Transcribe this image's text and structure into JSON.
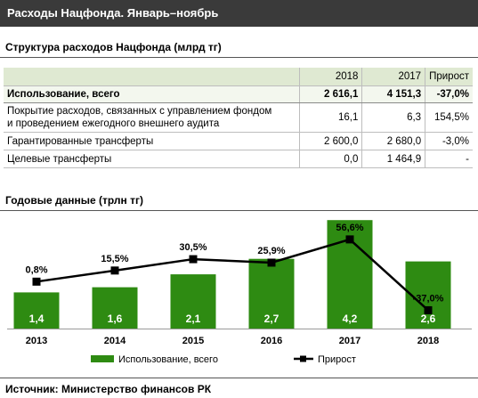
{
  "header": {
    "title": "Расходы Нацфонда. Январь–ноябрь"
  },
  "structure": {
    "title": "Структура  расходов Нацфонда (млрд тг)",
    "columns": [
      "2018",
      "2017",
      "Прирост"
    ],
    "rows": [
      {
        "label": "Использование, всего",
        "v2018": "2 616,1",
        "v2017": "4 151,3",
        "growth": "-37,0%"
      },
      {
        "label": "Покрытие расходов, связанных с управлением фондом",
        "label2": "и проведением ежегодного внешнего аудита",
        "v2018": "16,1",
        "v2017": "6,3",
        "growth": "154,5%"
      },
      {
        "label": "Гарантированные трансферты",
        "v2018": "2 600,0",
        "v2017": "2 680,0",
        "growth": "-3,0%"
      },
      {
        "label": "Целевые трансферты",
        "v2018": "0,0",
        "v2017": "1 464,9",
        "growth": "-"
      }
    ]
  },
  "chart_data": {
    "type": "bar",
    "title": "Годовые данные  (трлн тг)",
    "categories": [
      "2013",
      "2014",
      "2015",
      "2016",
      "2017",
      "2018"
    ],
    "series": [
      {
        "name": "Использование, всего",
        "type": "bar",
        "values": [
          1.4,
          1.6,
          2.1,
          2.7,
          4.2,
          2.6
        ],
        "labels": [
          "1,4",
          "1,6",
          "2,1",
          "2,7",
          "4,2",
          "2,6"
        ],
        "color": "#2e8b12"
      },
      {
        "name": "Прирост",
        "type": "line",
        "values": [
          0.8,
          15.5,
          30.5,
          25.9,
          56.6,
          -37.0
        ],
        "labels": [
          "0,8%",
          "15,5%",
          "30,5%",
          "25,9%",
          "56,6%",
          "-37,0%"
        ],
        "color": "#000000"
      }
    ],
    "grid": false,
    "legend": "bottom"
  },
  "source": "Источник:  Министерство  финансов РК"
}
